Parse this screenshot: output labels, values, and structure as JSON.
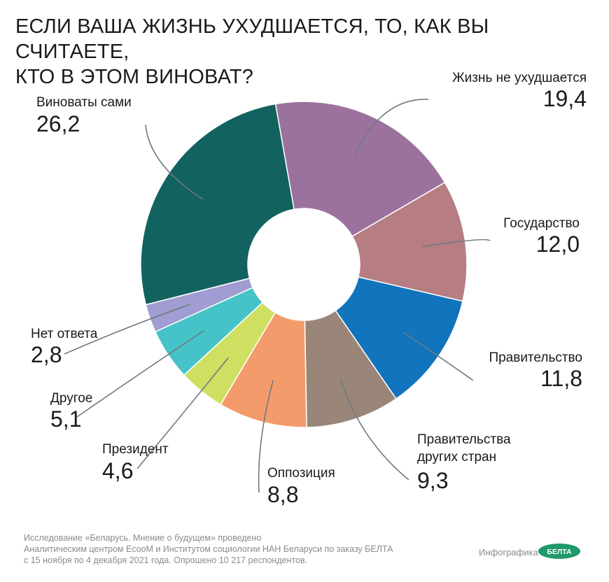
{
  "title": {
    "line1": "ЕСЛИ ВАША ЖИЗНЬ УХУДШАЕТСЯ, ТО, КАК ВЫ СЧИТАЕТЕ,",
    "line2": "КТО В ЭТОМ ВИНОВАТ?"
  },
  "chart_data": {
    "type": "pie",
    "variant": "donut",
    "start_angle_deg": -10,
    "direction": "clockwise",
    "slices": [
      {
        "label": "Жизнь не ухудшается",
        "value": 19.4,
        "display": "19,4",
        "color": "#9b729d"
      },
      {
        "label": "Государство",
        "value": 12.0,
        "display": "12,0",
        "color": "#b67d83"
      },
      {
        "label": "Правительство",
        "value": 11.8,
        "display": "11,8",
        "color": "#1174bc"
      },
      {
        "label": "Правительства другых стран",
        "label_lines": [
          "Правительства",
          "других стран"
        ],
        "value": 9.3,
        "display": "9,3",
        "color": "#9a8679"
      },
      {
        "label": "Оппозиция",
        "value": 8.8,
        "display": "8,8",
        "color": "#f49b6c"
      },
      {
        "label": "Президент",
        "value": 4.6,
        "display": "4,6",
        "color": "#cfdf62"
      },
      {
        "label": "Другое",
        "value": 5.1,
        "display": "5,1",
        "color": "#46c3c8"
      },
      {
        "label": "Нет ответа",
        "value": 2.8,
        "display": "2,8",
        "color": "#9f9dd2"
      },
      {
        "label": "Виноваты сами",
        "value": 26.2,
        "display": "26,2",
        "color": "#12625f"
      }
    ]
  },
  "footnote": {
    "line1": "Исследование «Беларусь. Мнение о будущем» проведено",
    "line2": "Аналитическим центром EcooM и Институтом социологии НАН Беларуси по заказу БЕЛТА",
    "line3": "с 15 ноября по 4 декабря 2021 года. Опрошено 10 217 респондентов."
  },
  "brand": {
    "label": "Инфографика",
    "logo_text": "БЕЛТА",
    "logo_color": "#1f9a6a"
  }
}
